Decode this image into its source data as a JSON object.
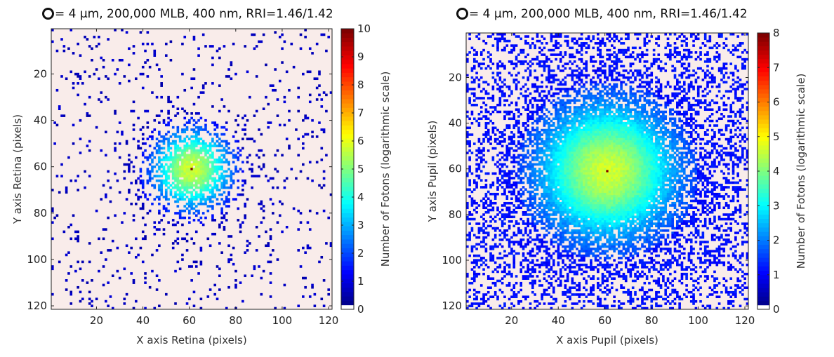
{
  "colors": {
    "background": "#f9ecea",
    "outline": "#111111",
    "colormap": "jet"
  },
  "chart_data": [
    {
      "type": "heatmap",
      "title_symbol": "ring-icon",
      "title": "= 4 µm, 200,000 MLB, 400 nm, RRI=1.46/1.42",
      "xlabel": "X axis Retina (pixels)",
      "ylabel": "Y axis Retina (pixels)",
      "xlim": [
        0.5,
        121.5
      ],
      "ylim": [
        0.5,
        121.5
      ],
      "y_reversed": true,
      "x_ticks": [
        "20",
        "40",
        "60",
        "80",
        "100",
        "120"
      ],
      "y_ticks": [
        "20",
        "40",
        "60",
        "80",
        "100",
        "120"
      ],
      "grid": false,
      "peak": {
        "x": 61,
        "y": 61
      },
      "colorbar": {
        "label": "Number of Fotons (logarithmic scale)",
        "scale": "logarithmic",
        "range": [
          0,
          10
        ],
        "ticks": [
          "0",
          "1",
          "2",
          "3",
          "4",
          "5",
          "6",
          "7",
          "8",
          "9",
          "10"
        ]
      }
    },
    {
      "type": "heatmap",
      "title_symbol": "ring-icon",
      "title": "= 4 µm, 200,000 MLB, 400 nm, RRI=1.46/1.42",
      "xlabel": "X axis Pupil (pixels)",
      "ylabel": "Y axis Pupil (pixels)",
      "xlim": [
        0.5,
        121.5
      ],
      "ylim": [
        0.5,
        121.5
      ],
      "y_reversed": true,
      "x_ticks": [
        "20",
        "40",
        "60",
        "80",
        "100",
        "120"
      ],
      "y_ticks": [
        "20",
        "40",
        "60",
        "80",
        "100",
        "120"
      ],
      "grid": false,
      "peak": {
        "x": 61,
        "y": 61
      },
      "colorbar": {
        "label": "Number of Fotons (logarithmic scale)",
        "scale": "logarithmic",
        "range": [
          0,
          8
        ],
        "ticks": [
          "0",
          "1",
          "2",
          "3",
          "4",
          "5",
          "6",
          "7",
          "8"
        ]
      }
    }
  ]
}
